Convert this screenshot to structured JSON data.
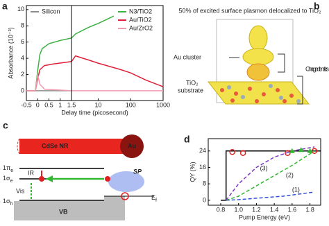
{
  "chart_data": [
    {
      "type": "line",
      "panel_label": "a",
      "xlabel": "Delay time (picosecond)",
      "ylabel": "Absorbance (10⁻³)",
      "xlim": [
        -0.5,
        1000
      ],
      "xscale": [
        "linear",
        "log"
      ],
      "xbreak": 1.5,
      "xticks": [
        -0.5,
        0,
        0.5,
        1,
        1.5,
        10,
        100,
        1000
      ],
      "ylim": [
        -1.2,
        10.5
      ],
      "yticks": [
        0,
        2,
        4,
        6,
        8,
        10
      ],
      "series": [
        {
          "name": "Silicon",
          "color": "#8c8c8c",
          "x": [
            -0.5,
            0.5,
            1.5
          ],
          "values": [
            0,
            0,
            0
          ]
        },
        {
          "name": "N3/TiO2",
          "color": "#3cb043",
          "x": [
            -0.5,
            -0.1,
            0,
            0.1,
            0.2,
            0.5,
            1,
            1.5,
            2,
            5,
            10,
            30
          ],
          "values": [
            0,
            0,
            2.5,
            4.5,
            5.2,
            5.8,
            6.2,
            6.5,
            7,
            7.8,
            8.3,
            9.2
          ]
        },
        {
          "name": "Au/TiO2",
          "color": "#e0203a",
          "x": [
            -0.5,
            -0.1,
            0,
            0.1,
            0.3,
            0.7,
            1.5,
            2,
            5,
            10,
            50,
            100,
            300,
            1000
          ],
          "values": [
            0,
            0,
            1.5,
            2.6,
            3.1,
            3.3,
            3.6,
            4.3,
            3.8,
            3.4,
            2.6,
            2.2,
            1.3,
            0.5
          ]
        },
        {
          "name": "Au/ZrO2",
          "color": "#f09ab0",
          "x": [
            -0.5,
            -0.1,
            0,
            0.1,
            0.3,
            1.5,
            10,
            1000
          ],
          "values": [
            0,
            0,
            2,
            0.8,
            0.2,
            0,
            0,
            0
          ]
        }
      ]
    },
    {
      "type": "line",
      "panel_label": "d",
      "xlabel": "Pump Energy (eV)",
      "ylabel": "QY (%)",
      "xlim": [
        0.66,
        1.92
      ],
      "xticks": [
        {
          "value": 0.8,
          "label": "0.8"
        },
        {
          "value": 1.0,
          "label": "1.0"
        },
        {
          "value": 1.2,
          "label": "1.2"
        },
        {
          "value": 1.4,
          "label": "1.4"
        },
        {
          "value": 1.6,
          "label": "1.6"
        },
        {
          "value": 1.8,
          "label": "1.8"
        }
      ],
      "ylim": [
        -2.4,
        30
      ],
      "yticks": [
        0,
        8,
        16,
        24
      ],
      "series": [
        {
          "color": "#000000",
          "style": "solid",
          "x": [
            0.8,
            0.86,
            0.86,
            1.92
          ],
          "values": [
            0,
            0,
            24,
            24
          ]
        },
        {
          "name": "(1)",
          "color": "#2f4fd8",
          "style": "dashed",
          "x": [
            0.86,
            1.0,
            1.2,
            1.5,
            1.85
          ],
          "values": [
            0,
            0.3,
            1,
            2,
            4
          ]
        },
        {
          "name": "(2)",
          "color": "#33b833",
          "style": "dashed",
          "x": [
            0.86,
            1.0,
            1.2,
            1.4,
            1.6,
            1.85
          ],
          "values": [
            0,
            2,
            7,
            12,
            17,
            24
          ]
        },
        {
          "name": "(3)",
          "color": "#7a35c8",
          "style": "dashed",
          "x": [
            0.86,
            1.0,
            1.2,
            1.4,
            1.6,
            1.85
          ],
          "values": [
            0,
            8,
            16,
            21,
            24,
            26
          ]
        },
        {
          "color": "#e02020",
          "style": "markers",
          "marker": "circle",
          "x": [
            0.93,
            1.05,
            1.55,
            1.85
          ],
          "values": [
            23.5,
            23,
            23,
            24
          ]
        },
        {
          "color": "#33b833",
          "style": "markers",
          "marker": "triangle",
          "x": [
            1.6,
            1.7,
            1.8
          ],
          "values": [
            24,
            24.5,
            24
          ]
        }
      ]
    }
  ],
  "diagram_b": {
    "panel_label": "b",
    "title": "50% of excited surface plasmon delocalized to TiO₂",
    "labels": [
      "Au cluster",
      "Charge densities",
      "TiO₂",
      "substrate"
    ]
  },
  "diagram_c": {
    "panel_label": "c",
    "rod": "CdSe NR",
    "sphere": "Au",
    "levels": [
      {
        "main": "1π",
        "sub": "e"
      },
      {
        "main": "1σ",
        "sub": "e"
      },
      {
        "main": "1σ",
        "sub": "h"
      }
    ],
    "labels": [
      "IR",
      "Vis",
      "SP",
      "VB"
    ],
    "fermi": {
      "main": "E",
      "sub": "f"
    }
  }
}
